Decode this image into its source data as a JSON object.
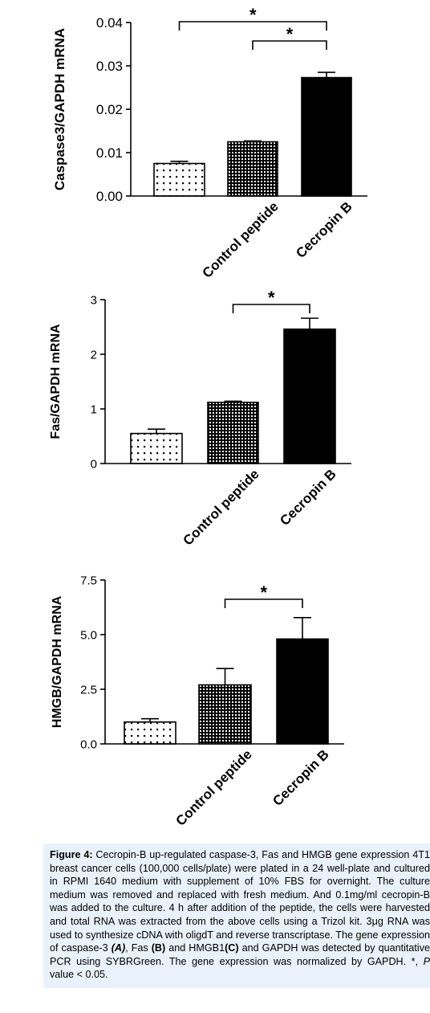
{
  "chart_data": [
    {
      "type": "bar",
      "panel": "A",
      "ylabel": "Caspase3/GAPDH mRNA",
      "categories": [
        "",
        "Control peptide",
        "Cecropin B"
      ],
      "values": [
        0.0075,
        0.0125,
        0.0273
      ],
      "errors": [
        0.0005,
        0.0002,
        0.0012
      ],
      "ylim": [
        0,
        0.04
      ],
      "yticks": [
        "0.00",
        "0.01",
        "0.02",
        "0.03",
        "0.04"
      ],
      "fills": [
        "sparse-dots",
        "dense-grid",
        "solid-black"
      ],
      "significance": [
        {
          "from": 0,
          "to": 2,
          "label": "*"
        },
        {
          "from": 1,
          "to": 2,
          "label": "*"
        }
      ]
    },
    {
      "type": "bar",
      "panel": "B",
      "ylabel": "Fas/GAPDH mRNA",
      "categories": [
        "",
        "Control peptide",
        "Cecropin B"
      ],
      "values": [
        0.55,
        1.12,
        2.46
      ],
      "errors": [
        0.08,
        0.02,
        0.2
      ],
      "ylim": [
        0,
        3
      ],
      "yticks": [
        "0",
        "1",
        "2",
        "3"
      ],
      "fills": [
        "sparse-dots",
        "dense-grid",
        "solid-black"
      ],
      "significance": [
        {
          "from": 1,
          "to": 2,
          "label": "*"
        }
      ]
    },
    {
      "type": "bar",
      "panel": "C",
      "ylabel": "HMGB/GAPDH mRNA",
      "categories": [
        "",
        "Control peptide",
        "Cecropin B"
      ],
      "values": [
        1.0,
        2.7,
        4.8
      ],
      "errors": [
        0.15,
        0.75,
        0.98
      ],
      "ylim": [
        0,
        7.5
      ],
      "yticks": [
        "0.0",
        "2.5",
        "5.0",
        "7.5"
      ],
      "fills": [
        "sparse-dots",
        "dense-grid",
        "solid-black"
      ],
      "significance": [
        {
          "from": 1,
          "to": 2,
          "label": "*"
        }
      ]
    }
  ],
  "caption": {
    "label": "Figure 4:",
    "p1": " Cecropin-B up-regulated caspase-3, Fas and HMGB gene expression 4T1 breast cancer cells (100,000 cells/plate) were plated in  a 24 well-plate and cultured in RPMI 1640 medium with supplement of 10% FBS for overnight. The culture medium was removed and replaced with fresh medium. And 0.1mg/ml cecropin-B was added to the culture. 4 h after addition of the peptide, the cells were harvested and total RNA was extracted from the above cells using a Trizol kit. 3μg RNA was used to synthesize cDNA with oligdT and reverse transcriptase. The gene expression of caspase-3 ",
    "ref_a": "(A)",
    "p2": ", Fas ",
    "ref_b": "(B)",
    "p3": " and HMGB1",
    "ref_c": "(C)",
    "p4": " and GAPDH was detected by quantitative PCR using SYBRGreen. The gene expression was normalized by GAPDH.  *, ",
    "p_symbol": "P",
    "p5": " value < 0.05."
  }
}
